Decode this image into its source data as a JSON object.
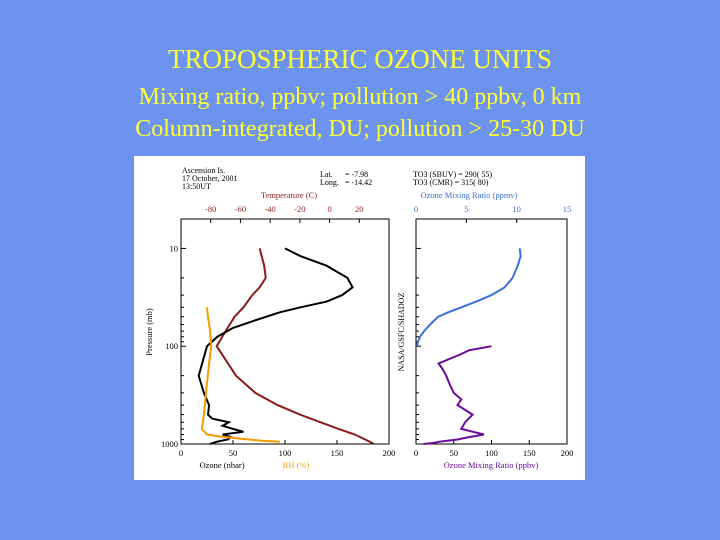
{
  "slide": {
    "title": "TROPOSPHERIC OZONE UNITS",
    "line2": "Mixing ratio, ppbv; pollution > 40 ppbv, 0 km",
    "line3": "Column-integrated, DU; pollution > 25-30 DU"
  },
  "chart_data": [
    {
      "type": "line",
      "header": {
        "site": "Ascension Is.",
        "date": "17 October, 2001",
        "time": "13:50UT",
        "lat_label": "Lat.",
        "lat_value": "= -7.98",
        "long_label": "Long.",
        "long_value": "= -14.42"
      },
      "top_axis": {
        "label": "Temperature (C)",
        "range": [
          -100,
          40
        ],
        "ticks": [
          "-80",
          "-60",
          "-40",
          "-20",
          "0",
          "20"
        ],
        "color": "#8b1a1a"
      },
      "bottom_axis": {
        "range": [
          0,
          200
        ],
        "ticks": [
          "0",
          "50",
          "100",
          "150",
          "200"
        ],
        "label_ozone": "Ozone (nbar)",
        "label_rh": "RH (%)",
        "rh_color": "#f59a00"
      },
      "y_axis": {
        "label": "Pressure (mb)",
        "scale": "log",
        "reversed": true,
        "range": [
          1000,
          5
        ],
        "ticks": [
          "10",
          "100",
          "1000"
        ]
      },
      "series": [
        {
          "name": "Temperature (C)",
          "axis": "top",
          "color": "#8b1a1a",
          "x": [
            30,
            24,
            17,
            6,
            -6,
            -20,
            -35,
            -50,
            -63,
            -76,
            -70,
            -64,
            -58,
            -52,
            -47,
            -43,
            -44,
            -47
          ],
          "y": [
            1000,
            900,
            800,
            700,
            600,
            500,
            400,
            300,
            200,
            100,
            70,
            50,
            40,
            30,
            25,
            20,
            15,
            10
          ]
        },
        {
          "name": "Ozone (nbar)",
          "axis": "bottom",
          "color": "#000000",
          "x": [
            28,
            34,
            45,
            48,
            40,
            60,
            50,
            40,
            46,
            30,
            26,
            27,
            22,
            17,
            25,
            35,
            50,
            70,
            95,
            115,
            140,
            155,
            165,
            160,
            140,
            115,
            100
          ],
          "y": [
            1000,
            950,
            900,
            850,
            800,
            750,
            700,
            650,
            600,
            550,
            500,
            400,
            300,
            200,
            100,
            80,
            65,
            55,
            45,
            40,
            35,
            30,
            25,
            20,
            15,
            12,
            10
          ]
        },
        {
          "name": "RH (%)",
          "axis": "bottom",
          "color": "#f59a00",
          "x": [
            95,
            80,
            65,
            52,
            35,
            25,
            20,
            22,
            24,
            27,
            29,
            28,
            26,
            25
          ],
          "y": [
            950,
            930,
            900,
            870,
            830,
            800,
            700,
            500,
            300,
            150,
            100,
            70,
            50,
            40
          ]
        }
      ]
    },
    {
      "type": "line",
      "header": {
        "line1": "TO3 (SBUV) = 290( 55)",
        "line2": "TO3 (CMR) = 315( 80)"
      },
      "side_label": "NASA/GSFC/SHADOZ",
      "top_axis": {
        "label": "Ozone Mixing Ratio (ppmv)",
        "range": [
          0,
          15
        ],
        "ticks": [
          "0",
          "5",
          "10",
          "15"
        ],
        "color": "#3a6ed8"
      },
      "bottom_axis": {
        "label": "Ozone Mixing Ratio (ppbv)",
        "range": [
          0,
          200
        ],
        "ticks": [
          "0",
          "50",
          "100",
          "150",
          "200"
        ],
        "color": "#6a0a9a"
      },
      "y_axis": {
        "scale": "log",
        "reversed": true,
        "range": [
          1000,
          5
        ]
      },
      "series": [
        {
          "name": "Ozone Mixing Ratio (ppmv)",
          "axis": "top",
          "color": "#3a6ed8",
          "x": [
            0.1,
            0.2,
            0.4,
            0.8,
            1.4,
            2.2,
            3.2,
            4.5,
            6.0,
            7.5,
            8.8,
            9.6,
            10.1,
            10.4,
            10.3
          ],
          "y": [
            100,
            90,
            80,
            70,
            60,
            50,
            45,
            40,
            35,
            30,
            25,
            20,
            15,
            12,
            10
          ]
        },
        {
          "name": "Ozone Mixing Ratio (ppbv)",
          "axis": "bottom",
          "color": "#6a0a9a",
          "x": [
            10,
            25,
            30,
            40,
            55,
            70,
            90,
            60,
            65,
            75,
            55,
            60,
            50,
            45,
            40,
            35,
            30,
            60,
            70,
            100
          ],
          "y": [
            1000,
            970,
            950,
            930,
            900,
            850,
            800,
            700,
            600,
            500,
            400,
            350,
            300,
            250,
            200,
            170,
            150,
            120,
            110,
            100
          ]
        }
      ]
    }
  ]
}
